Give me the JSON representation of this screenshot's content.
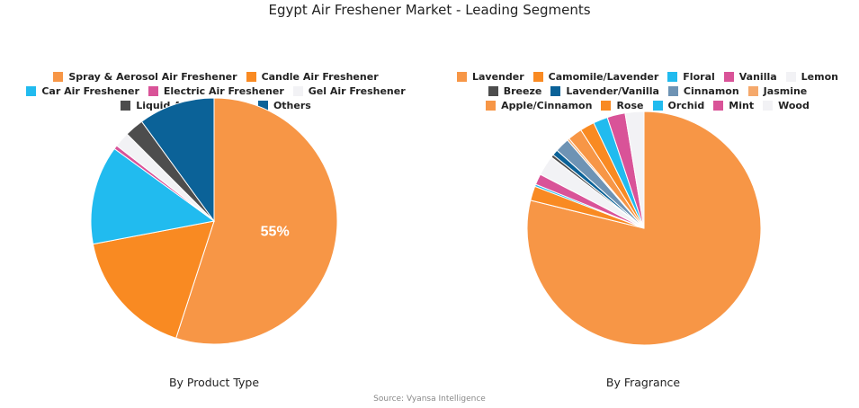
{
  "title": "Egypt Air Freshener Market - Leading Segments",
  "source": "Source: Vyansa Intelligence",
  "chart_data": [
    {
      "type": "pie",
      "title": "By Product Type",
      "legend_position": "top",
      "slices": [
        {
          "label": "Spray & Aerosol Air Freshener",
          "value": 55,
          "color": "#F79646",
          "data_label": "55%"
        },
        {
          "label": "Candle Air Freshener",
          "value": 17,
          "color": "#F98A22",
          "data_label": ""
        },
        {
          "label": "Car Air Freshener",
          "value": 13,
          "color": "#21BBEF",
          "data_label": ""
        },
        {
          "label": "Electric Air Freshener",
          "value": 0.5,
          "color": "#D95398",
          "data_label": ""
        },
        {
          "label": "Gel Air Freshener",
          "value": 2,
          "color": "#F2F2F5",
          "data_label": ""
        },
        {
          "label": "Liquid Air Freshener",
          "value": 2.5,
          "color": "#4D4D4D",
          "data_label": ""
        },
        {
          "label": "Others",
          "value": 10,
          "color": "#0B6298",
          "data_label": ""
        }
      ]
    },
    {
      "type": "pie",
      "title": "By Fragrance",
      "legend_position": "top",
      "slices": [
        {
          "label": "Lavender",
          "value": 79,
          "color": "#F79646",
          "data_label": ""
        },
        {
          "label": "Camomile/Lavender",
          "value": 2,
          "color": "#F98A22",
          "data_label": ""
        },
        {
          "label": "Floral",
          "value": 0.3,
          "color": "#21BBEF",
          "data_label": ""
        },
        {
          "label": "Vanilla",
          "value": 1.5,
          "color": "#D95398",
          "data_label": ""
        },
        {
          "label": "Lemon",
          "value": 2.8,
          "color": "#F2F2F5",
          "data_label": ""
        },
        {
          "label": "Breeze",
          "value": 0.4,
          "color": "#4D4D4D",
          "data_label": ""
        },
        {
          "label": "Lavender/Vanilla",
          "value": 0.8,
          "color": "#0B6298",
          "data_label": ""
        },
        {
          "label": "Cinnamon",
          "value": 2,
          "color": "#6E93B4",
          "data_label": ""
        },
        {
          "label": "Jasmine",
          "value": 0.3,
          "color": "#F5A96C",
          "data_label": ""
        },
        {
          "label": "Apple/Cinnamon",
          "value": 2,
          "color": "#F79646",
          "data_label": ""
        },
        {
          "label": "Rose",
          "value": 2,
          "color": "#F98A22",
          "data_label": ""
        },
        {
          "label": "Orchid",
          "value": 2,
          "color": "#21BBEF",
          "data_label": ""
        },
        {
          "label": "Mint",
          "value": 2.5,
          "color": "#D95398",
          "data_label": ""
        },
        {
          "label": "Wood",
          "value": 2.6,
          "color": "#F2F2F5",
          "data_label": ""
        }
      ]
    }
  ]
}
